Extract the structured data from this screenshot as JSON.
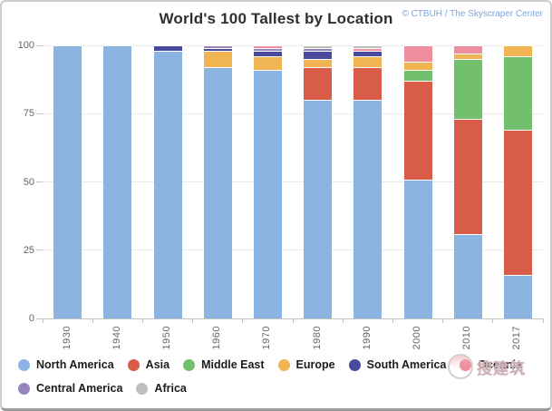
{
  "frame": {
    "title": "World's 100 Tallest by Location",
    "attribution": "© CTBUH / The Skyscraper Center"
  },
  "chart_data": {
    "type": "bar",
    "stacked": true,
    "title": "World's 100 Tallest by Location",
    "xlabel": "",
    "ylabel": "",
    "ylim": [
      0,
      100
    ],
    "y_ticks": [
      0,
      25,
      50,
      75,
      100
    ],
    "grid": "horizontal",
    "legend_position": "bottom",
    "categories": [
      "1930",
      "1940",
      "1950",
      "1960",
      "1970",
      "1980",
      "1990",
      "2000",
      "2010",
      "2017"
    ],
    "series": [
      {
        "name": "North America",
        "color": "#8CB4E0",
        "values": [
          100,
          100,
          98,
          92,
          91,
          80,
          80,
          51,
          31,
          16
        ]
      },
      {
        "name": "Asia",
        "color": "#D95C49",
        "values": [
          0,
          0,
          0,
          0,
          0,
          12,
          12,
          36,
          42,
          53
        ]
      },
      {
        "name": "Middle East",
        "color": "#72C06E",
        "values": [
          0,
          0,
          0,
          0,
          0,
          0,
          0,
          4,
          22,
          27
        ]
      },
      {
        "name": "Europe",
        "color": "#F0B552",
        "values": [
          0,
          0,
          0,
          6,
          5,
          3,
          4,
          3,
          2,
          4
        ]
      },
      {
        "name": "South America",
        "color": "#4A4A9C",
        "values": [
          0,
          0,
          2,
          1,
          2,
          3,
          2,
          0,
          0,
          0
        ]
      },
      {
        "name": "Central America",
        "color": "#9884BE",
        "values": [
          0,
          0,
          0,
          1,
          1,
          1,
          0,
          0,
          0,
          0
        ]
      },
      {
        "name": "Oceania",
        "color": "#EE8E9E",
        "values": [
          0,
          0,
          0,
          0,
          1,
          0,
          1,
          6,
          3,
          0
        ]
      },
      {
        "name": "Africa",
        "color": "#BEBEBE",
        "values": [
          0,
          0,
          0,
          0,
          0,
          1,
          1,
          0,
          0,
          0
        ]
      }
    ],
    "legend_order": [
      "North America",
      "Asia",
      "Middle East",
      "Europe",
      "South America",
      "Oceania",
      "Central America",
      "Africa"
    ],
    "legend_wrap_after": "Oceania"
  },
  "watermark": {
    "text": "搜建筑"
  }
}
